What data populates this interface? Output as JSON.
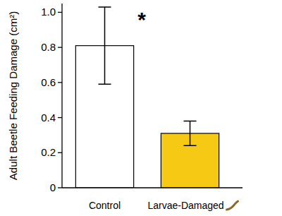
{
  "chart_data": {
    "type": "bar",
    "y_label": "Adult Beetle Feeding Damage (cm²)",
    "categories": [
      "Control",
      "Larvae-Damaged"
    ],
    "values": [
      0.81,
      0.31
    ],
    "errors": [
      0.22,
      0.07
    ],
    "colors": [
      "#ffffff",
      "#f6c915"
    ],
    "ylim": [
      0,
      1.05
    ],
    "yticks": [
      0,
      0.2,
      0.4,
      0.6,
      0.8,
      {
        "value": 1,
        "label": "1.0"
      }
    ],
    "annotations": [
      "*"
    ],
    "grid": false
  }
}
